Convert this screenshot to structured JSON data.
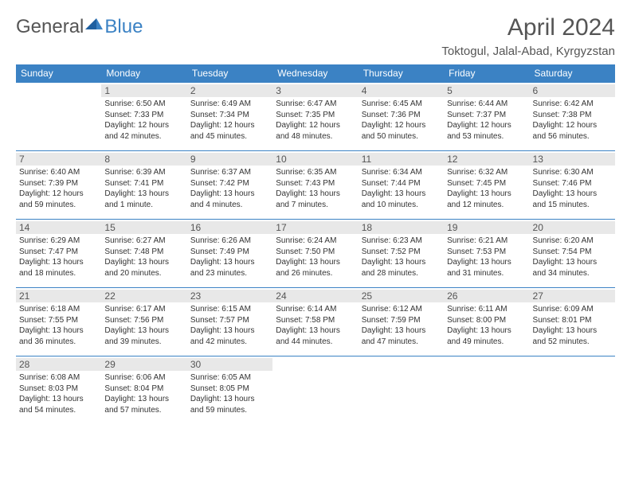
{
  "logo": {
    "text_general": "General",
    "text_blue": "Blue"
  },
  "title": "April 2024",
  "location": "Toktogul, Jalal-Abad, Kyrgyzstan",
  "colors": {
    "header_bg": "#3b82c4",
    "header_text": "#ffffff",
    "daynum_bg": "#e8e8e8",
    "text": "#333333",
    "border": "#3b82c4"
  },
  "day_headers": [
    "Sunday",
    "Monday",
    "Tuesday",
    "Wednesday",
    "Thursday",
    "Friday",
    "Saturday"
  ],
  "weeks": [
    [
      null,
      {
        "n": "1",
        "sunrise": "6:50 AM",
        "sunset": "7:33 PM",
        "daylight": "12 hours and 42 minutes."
      },
      {
        "n": "2",
        "sunrise": "6:49 AM",
        "sunset": "7:34 PM",
        "daylight": "12 hours and 45 minutes."
      },
      {
        "n": "3",
        "sunrise": "6:47 AM",
        "sunset": "7:35 PM",
        "daylight": "12 hours and 48 minutes."
      },
      {
        "n": "4",
        "sunrise": "6:45 AM",
        "sunset": "7:36 PM",
        "daylight": "12 hours and 50 minutes."
      },
      {
        "n": "5",
        "sunrise": "6:44 AM",
        "sunset": "7:37 PM",
        "daylight": "12 hours and 53 minutes."
      },
      {
        "n": "6",
        "sunrise": "6:42 AM",
        "sunset": "7:38 PM",
        "daylight": "12 hours and 56 minutes."
      }
    ],
    [
      {
        "n": "7",
        "sunrise": "6:40 AM",
        "sunset": "7:39 PM",
        "daylight": "12 hours and 59 minutes."
      },
      {
        "n": "8",
        "sunrise": "6:39 AM",
        "sunset": "7:41 PM",
        "daylight": "13 hours and 1 minute."
      },
      {
        "n": "9",
        "sunrise": "6:37 AM",
        "sunset": "7:42 PM",
        "daylight": "13 hours and 4 minutes."
      },
      {
        "n": "10",
        "sunrise": "6:35 AM",
        "sunset": "7:43 PM",
        "daylight": "13 hours and 7 minutes."
      },
      {
        "n": "11",
        "sunrise": "6:34 AM",
        "sunset": "7:44 PM",
        "daylight": "13 hours and 10 minutes."
      },
      {
        "n": "12",
        "sunrise": "6:32 AM",
        "sunset": "7:45 PM",
        "daylight": "13 hours and 12 minutes."
      },
      {
        "n": "13",
        "sunrise": "6:30 AM",
        "sunset": "7:46 PM",
        "daylight": "13 hours and 15 minutes."
      }
    ],
    [
      {
        "n": "14",
        "sunrise": "6:29 AM",
        "sunset": "7:47 PM",
        "daylight": "13 hours and 18 minutes."
      },
      {
        "n": "15",
        "sunrise": "6:27 AM",
        "sunset": "7:48 PM",
        "daylight": "13 hours and 20 minutes."
      },
      {
        "n": "16",
        "sunrise": "6:26 AM",
        "sunset": "7:49 PM",
        "daylight": "13 hours and 23 minutes."
      },
      {
        "n": "17",
        "sunrise": "6:24 AM",
        "sunset": "7:50 PM",
        "daylight": "13 hours and 26 minutes."
      },
      {
        "n": "18",
        "sunrise": "6:23 AM",
        "sunset": "7:52 PM",
        "daylight": "13 hours and 28 minutes."
      },
      {
        "n": "19",
        "sunrise": "6:21 AM",
        "sunset": "7:53 PM",
        "daylight": "13 hours and 31 minutes."
      },
      {
        "n": "20",
        "sunrise": "6:20 AM",
        "sunset": "7:54 PM",
        "daylight": "13 hours and 34 minutes."
      }
    ],
    [
      {
        "n": "21",
        "sunrise": "6:18 AM",
        "sunset": "7:55 PM",
        "daylight": "13 hours and 36 minutes."
      },
      {
        "n": "22",
        "sunrise": "6:17 AM",
        "sunset": "7:56 PM",
        "daylight": "13 hours and 39 minutes."
      },
      {
        "n": "23",
        "sunrise": "6:15 AM",
        "sunset": "7:57 PM",
        "daylight": "13 hours and 42 minutes."
      },
      {
        "n": "24",
        "sunrise": "6:14 AM",
        "sunset": "7:58 PM",
        "daylight": "13 hours and 44 minutes."
      },
      {
        "n": "25",
        "sunrise": "6:12 AM",
        "sunset": "7:59 PM",
        "daylight": "13 hours and 47 minutes."
      },
      {
        "n": "26",
        "sunrise": "6:11 AM",
        "sunset": "8:00 PM",
        "daylight": "13 hours and 49 minutes."
      },
      {
        "n": "27",
        "sunrise": "6:09 AM",
        "sunset": "8:01 PM",
        "daylight": "13 hours and 52 minutes."
      }
    ],
    [
      {
        "n": "28",
        "sunrise": "6:08 AM",
        "sunset": "8:03 PM",
        "daylight": "13 hours and 54 minutes."
      },
      {
        "n": "29",
        "sunrise": "6:06 AM",
        "sunset": "8:04 PM",
        "daylight": "13 hours and 57 minutes."
      },
      {
        "n": "30",
        "sunrise": "6:05 AM",
        "sunset": "8:05 PM",
        "daylight": "13 hours and 59 minutes."
      },
      null,
      null,
      null,
      null
    ]
  ],
  "labels": {
    "sunrise": "Sunrise:",
    "sunset": "Sunset:",
    "daylight": "Daylight:"
  }
}
